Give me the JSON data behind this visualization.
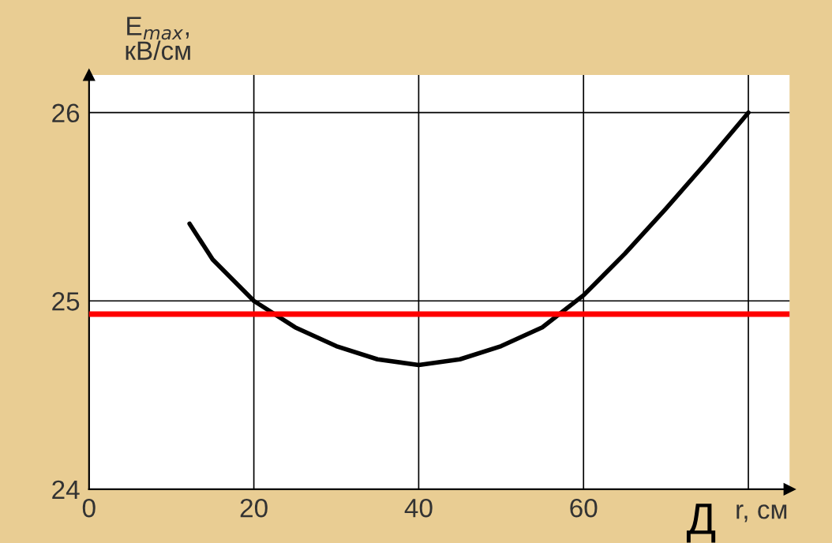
{
  "chart_data": {
    "type": "line",
    "xlabel": "r, см",
    "ylabel": "E$_{max}$,\nкВ/см",
    "x": [
      12.2,
      15,
      20,
      25,
      30,
      35,
      40,
      45,
      50,
      55,
      60,
      65,
      70,
      75,
      80
    ],
    "series": [
      {
        "color": "#000000",
        "values": [
          25.41,
          25.22,
          25.0,
          24.86,
          24.76,
          24.69,
          24.66,
          24.69,
          24.76,
          24.86,
          25.03,
          25.25,
          25.49,
          25.74,
          26.0
        ]
      }
    ],
    "xlim": [
      0,
      85
    ],
    "ylim": [
      24,
      26.2
    ],
    "xticks": [
      0,
      20,
      40,
      60,
      {
        "value": 80,
        "label": null
      }
    ],
    "yticks": [
      24,
      25,
      26
    ],
    "grid": true,
    "line_style": "solid",
    "marker": "none",
    "ref_lines": [
      {
        "axis": "y",
        "value": 24.93,
        "color": "#ff0000"
      }
    ],
    "annotations": [
      "Д"
    ]
  }
}
